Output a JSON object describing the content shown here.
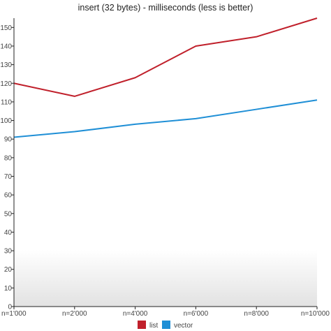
{
  "chart_data": {
    "type": "line",
    "title": "insert (32 bytes) - milliseconds (less is better)",
    "xlabel": "",
    "ylabel": "",
    "categories": [
      "n=1'000",
      "n=2'000",
      "n=4'000",
      "n=6'000",
      "n=8'000",
      "n=10'000"
    ],
    "yticks": [
      0,
      10,
      20,
      30,
      40,
      50,
      60,
      70,
      80,
      90,
      100,
      110,
      120,
      130,
      140,
      150
    ],
    "ylim": [
      0,
      155
    ],
    "grid": false,
    "legend_position": "bottom",
    "series": [
      {
        "name": "list",
        "color": "#c0202b",
        "values": [
          120,
          113,
          123,
          140,
          145,
          155
        ]
      },
      {
        "name": "vector",
        "color": "#1f8fd6",
        "values": [
          91,
          94,
          98,
          101,
          106,
          111
        ]
      }
    ]
  }
}
